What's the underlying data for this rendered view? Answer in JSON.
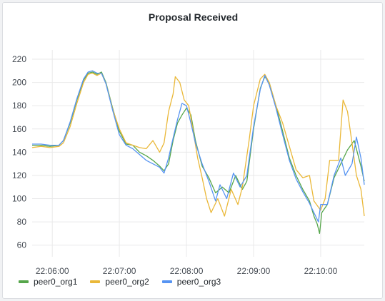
{
  "panel": {
    "title": "Proposal Received"
  },
  "chart_data": {
    "type": "line",
    "title": "Proposal Received",
    "ylim": [
      50,
      228
    ],
    "xlim": [
      "22:05:42",
      "22:10:39"
    ],
    "yticks": [
      60,
      80,
      100,
      120,
      140,
      160,
      180,
      200,
      220
    ],
    "xticks": [
      "22:06:00",
      "22:07:00",
      "22:08:00",
      "22:09:00",
      "22:10:00"
    ],
    "grid": true,
    "legend_position": "bottom-left",
    "series": [
      {
        "name": "peer0_org1",
        "color": "#56a64b",
        "points": [
          [
            "22:05:42",
            146
          ],
          [
            "22:05:50",
            146
          ],
          [
            "22:05:58",
            145
          ],
          [
            "22:06:06",
            146
          ],
          [
            "22:06:10",
            150
          ],
          [
            "22:06:16",
            165
          ],
          [
            "22:06:22",
            185
          ],
          [
            "22:06:28",
            202
          ],
          [
            "22:06:32",
            208
          ],
          [
            "22:06:36",
            209
          ],
          [
            "22:06:40",
            207
          ],
          [
            "22:06:44",
            209
          ],
          [
            "22:06:48",
            200
          ],
          [
            "22:06:54",
            178
          ],
          [
            "22:07:00",
            158
          ],
          [
            "22:07:06",
            147
          ],
          [
            "22:07:12",
            146
          ],
          [
            "22:07:18",
            140
          ],
          [
            "22:07:24",
            137
          ],
          [
            "22:07:30",
            133
          ],
          [
            "22:07:36",
            128
          ],
          [
            "22:07:40",
            124
          ],
          [
            "22:07:44",
            130
          ],
          [
            "22:07:48",
            150
          ],
          [
            "22:07:52",
            165
          ],
          [
            "22:07:56",
            172
          ],
          [
            "22:08:00",
            178
          ],
          [
            "22:08:04",
            172
          ],
          [
            "22:08:08",
            150
          ],
          [
            "22:08:14",
            128
          ],
          [
            "22:08:20",
            118
          ],
          [
            "22:08:26",
            105
          ],
          [
            "22:08:32",
            110
          ],
          [
            "22:08:38",
            105
          ],
          [
            "22:08:44",
            120
          ],
          [
            "22:08:50",
            108
          ],
          [
            "22:08:54",
            115
          ],
          [
            "22:09:00",
            160
          ],
          [
            "22:09:06",
            195
          ],
          [
            "22:09:10",
            205
          ],
          [
            "22:09:14",
            200
          ],
          [
            "22:09:20",
            180
          ],
          [
            "22:09:26",
            158
          ],
          [
            "22:09:32",
            135
          ],
          [
            "22:09:38",
            120
          ],
          [
            "22:09:44",
            108
          ],
          [
            "22:09:50",
            98
          ],
          [
            "22:09:54",
            85
          ],
          [
            "22:09:57",
            78
          ],
          [
            "22:09:59",
            70
          ],
          [
            "22:10:01",
            88
          ],
          [
            "22:10:06",
            95
          ],
          [
            "22:10:12",
            118
          ],
          [
            "22:10:18",
            130
          ],
          [
            "22:10:24",
            142
          ],
          [
            "22:10:30",
            150
          ],
          [
            "22:10:36",
            128
          ],
          [
            "22:10:39",
            115
          ]
        ]
      },
      {
        "name": "peer0_org2",
        "color": "#eab839",
        "points": [
          [
            "22:05:42",
            144
          ],
          [
            "22:05:50",
            145
          ],
          [
            "22:05:58",
            144
          ],
          [
            "22:06:06",
            145
          ],
          [
            "22:06:10",
            148
          ],
          [
            "22:06:16",
            162
          ],
          [
            "22:06:22",
            182
          ],
          [
            "22:06:28",
            200
          ],
          [
            "22:06:32",
            207
          ],
          [
            "22:06:36",
            208
          ],
          [
            "22:06:40",
            206
          ],
          [
            "22:06:44",
            208
          ],
          [
            "22:06:48",
            199
          ],
          [
            "22:06:54",
            177
          ],
          [
            "22:07:00",
            160
          ],
          [
            "22:07:06",
            148
          ],
          [
            "22:07:12",
            146
          ],
          [
            "22:07:18",
            144
          ],
          [
            "22:07:24",
            143
          ],
          [
            "22:07:30",
            150
          ],
          [
            "22:07:36",
            140
          ],
          [
            "22:07:40",
            148
          ],
          [
            "22:07:44",
            175
          ],
          [
            "22:07:48",
            190
          ],
          [
            "22:07:50",
            205
          ],
          [
            "22:07:54",
            200
          ],
          [
            "22:07:58",
            185
          ],
          [
            "22:08:02",
            180
          ],
          [
            "22:08:06",
            158
          ],
          [
            "22:08:10",
            135
          ],
          [
            "22:08:14",
            118
          ],
          [
            "22:08:18",
            100
          ],
          [
            "22:08:22",
            88
          ],
          [
            "22:08:28",
            100
          ],
          [
            "22:08:34",
            85
          ],
          [
            "22:08:40",
            108
          ],
          [
            "22:08:46",
            95
          ],
          [
            "22:08:50",
            110
          ],
          [
            "22:08:56",
            150
          ],
          [
            "22:09:00",
            180
          ],
          [
            "22:09:06",
            203
          ],
          [
            "22:09:10",
            207
          ],
          [
            "22:09:14",
            200
          ],
          [
            "22:09:20",
            180
          ],
          [
            "22:09:26",
            165
          ],
          [
            "22:09:32",
            145
          ],
          [
            "22:09:38",
            125
          ],
          [
            "22:09:44",
            118
          ],
          [
            "22:09:50",
            120
          ],
          [
            "22:09:54",
            98
          ],
          [
            "22:10:00",
            90
          ],
          [
            "22:10:04",
            100
          ],
          [
            "22:10:08",
            133
          ],
          [
            "22:10:16",
            133
          ],
          [
            "22:10:20",
            185
          ],
          [
            "22:10:24",
            175
          ],
          [
            "22:10:28",
            148
          ],
          [
            "22:10:32",
            120
          ],
          [
            "22:10:36",
            108
          ],
          [
            "22:10:39",
            85
          ]
        ]
      },
      {
        "name": "peer0_org3",
        "color": "#5794f2",
        "points": [
          [
            "22:05:42",
            147
          ],
          [
            "22:05:50",
            147
          ],
          [
            "22:05:58",
            146
          ],
          [
            "22:06:06",
            146
          ],
          [
            "22:06:10",
            150
          ],
          [
            "22:06:16",
            166
          ],
          [
            "22:06:22",
            186
          ],
          [
            "22:06:28",
            203
          ],
          [
            "22:06:32",
            209
          ],
          [
            "22:06:36",
            210
          ],
          [
            "22:06:40",
            208
          ],
          [
            "22:06:44",
            208
          ],
          [
            "22:06:48",
            199
          ],
          [
            "22:06:54",
            176
          ],
          [
            "22:07:00",
            155
          ],
          [
            "22:07:06",
            146
          ],
          [
            "22:07:12",
            143
          ],
          [
            "22:07:18",
            138
          ],
          [
            "22:07:24",
            133
          ],
          [
            "22:07:30",
            130
          ],
          [
            "22:07:36",
            127
          ],
          [
            "22:07:40",
            122
          ],
          [
            "22:07:44",
            135
          ],
          [
            "22:07:48",
            152
          ],
          [
            "22:07:52",
            168
          ],
          [
            "22:07:56",
            182
          ],
          [
            "22:08:00",
            180
          ],
          [
            "22:08:04",
            165
          ],
          [
            "22:08:08",
            148
          ],
          [
            "22:08:14",
            130
          ],
          [
            "22:08:20",
            115
          ],
          [
            "22:08:26",
            98
          ],
          [
            "22:08:30",
            112
          ],
          [
            "22:08:36",
            100
          ],
          [
            "22:08:42",
            122
          ],
          [
            "22:08:48",
            110
          ],
          [
            "22:08:54",
            120
          ],
          [
            "22:09:00",
            162
          ],
          [
            "22:09:06",
            194
          ],
          [
            "22:09:10",
            206
          ],
          [
            "22:09:14",
            198
          ],
          [
            "22:09:20",
            178
          ],
          [
            "22:09:26",
            155
          ],
          [
            "22:09:32",
            133
          ],
          [
            "22:09:38",
            117
          ],
          [
            "22:09:44",
            106
          ],
          [
            "22:09:50",
            96
          ],
          [
            "22:09:54",
            88
          ],
          [
            "22:09:58",
            80
          ],
          [
            "22:10:00",
            95
          ],
          [
            "22:10:06",
            95
          ],
          [
            "22:10:12",
            120
          ],
          [
            "22:10:18",
            135
          ],
          [
            "22:10:22",
            120
          ],
          [
            "22:10:28",
            130
          ],
          [
            "22:10:32",
            153
          ],
          [
            "22:10:36",
            135
          ],
          [
            "22:10:39",
            112
          ]
        ]
      }
    ]
  }
}
